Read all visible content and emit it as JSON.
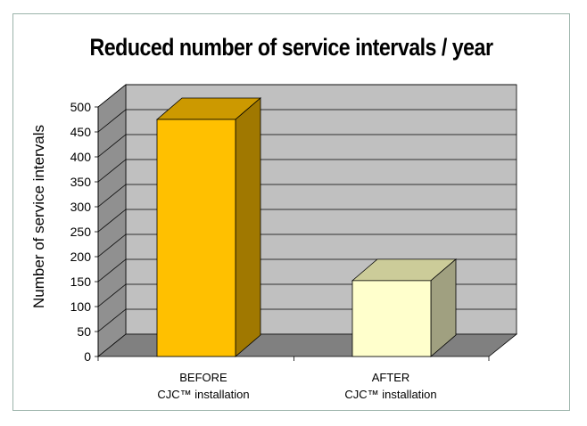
{
  "chart_data": {
    "type": "bar",
    "title": "Reduced number of service intervals / year",
    "ylabel": "Number of service intervals",
    "xlabel": "",
    "categories": [
      {
        "name": "BEFORE",
        "sub": "CJC™ installation"
      },
      {
        "name": "AFTER",
        "sub": "CJC™ installation"
      }
    ],
    "values": [
      475,
      152
    ],
    "ylim": [
      0,
      500
    ],
    "yticks": [
      0,
      50,
      100,
      150,
      200,
      250,
      300,
      350,
      400,
      450,
      500
    ],
    "grid": true,
    "three_d": true,
    "colors": {
      "before_front": "#ffc000",
      "before_top": "#cc9900",
      "before_side": "#a07800",
      "after_front": "#ffffcc",
      "after_top": "#cccc99",
      "after_side": "#a0a080",
      "back_wall": "#c0c0c0",
      "side_wall": "#909090",
      "floor": "#808080",
      "frame": "#9bb3aa"
    }
  }
}
